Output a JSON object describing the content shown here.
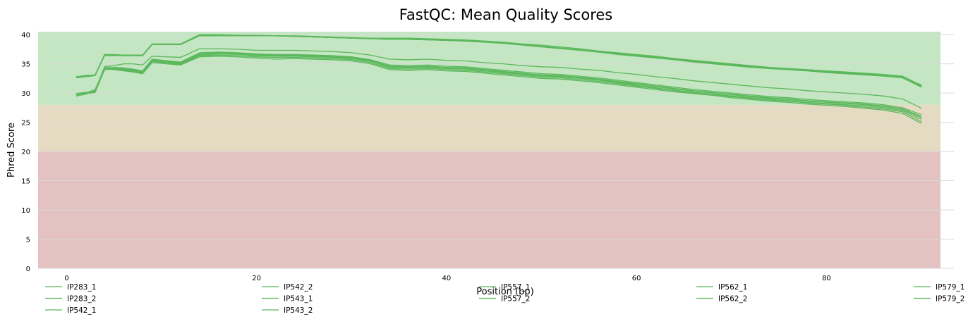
{
  "chart_data": {
    "type": "line",
    "title": "FastQC: Mean Quality Scores",
    "xlabel": "Position (bp)",
    "ylabel": "Phred Score",
    "xlim": [
      -3,
      92
    ],
    "ylim": [
      0,
      40.5
    ],
    "xticks": [
      0,
      20,
      40,
      60,
      80
    ],
    "yticks": [
      0,
      5,
      10,
      15,
      20,
      25,
      30,
      35,
      40
    ],
    "grid": "horizontal",
    "legend_placement": "bottom",
    "bands": [
      {
        "from": 0,
        "to": 20,
        "color": "#e4c2c1"
      },
      {
        "from": 20,
        "to": 28,
        "color": "#e5dbc3"
      },
      {
        "from": 28,
        "to": 40.5,
        "color": "#c4e6c3"
      }
    ],
    "line_color": "#5cb85c",
    "x": [
      1,
      2,
      3,
      4,
      5,
      6,
      7,
      8,
      9,
      12,
      14,
      16,
      18,
      20,
      22,
      24,
      26,
      28,
      30,
      32,
      34,
      36,
      38,
      40,
      42,
      44,
      46,
      48,
      50,
      52,
      54,
      56,
      58,
      60,
      62,
      64,
      66,
      68,
      70,
      72,
      74,
      76,
      78,
      80,
      82,
      84,
      86,
      88,
      90
    ],
    "series": [
      {
        "name": "IP283_1",
        "values": [
          32.7,
          32.9,
          33.0,
          36.5,
          36.5,
          36.4,
          36.4,
          36.4,
          38.3,
          38.3,
          39.9,
          39.9,
          39.9,
          39.8,
          39.8,
          39.7,
          39.6,
          39.5,
          39.4,
          39.3,
          39.2,
          39.2,
          39.1,
          39.0,
          38.9,
          38.7,
          38.5,
          38.3,
          38.0,
          37.7,
          37.4,
          37.1,
          36.8,
          36.5,
          36.2,
          35.9,
          35.5,
          35.2,
          34.9,
          34.6,
          34.3,
          34.1,
          33.9,
          33.7,
          33.5,
          33.3,
          33.1,
          32.8,
          31.1
        ]
      },
      {
        "name": "IP283_2",
        "values": [
          32.6,
          32.8,
          33.0,
          36.4,
          36.4,
          36.4,
          36.4,
          36.4,
          38.3,
          38.3,
          39.8,
          39.8,
          39.8,
          39.8,
          39.8,
          39.7,
          39.6,
          39.5,
          39.4,
          39.3,
          39.3,
          39.3,
          39.2,
          39.1,
          39.0,
          38.8,
          38.6,
          38.3,
          38.0,
          37.7,
          37.4,
          37.0,
          36.7,
          36.4,
          36.1,
          35.7,
          35.4,
          35.1,
          34.8,
          34.5,
          34.2,
          34.0,
          33.8,
          33.6,
          33.4,
          33.2,
          33.0,
          32.6,
          31.4
        ]
      },
      {
        "name": "IP542_1",
        "values": [
          29.8,
          29.9,
          30.1,
          34.0,
          34.1,
          34.0,
          33.8,
          33.5,
          35.5,
          35.0,
          36.5,
          36.7,
          36.6,
          36.4,
          36.3,
          36.3,
          36.2,
          36.1,
          35.9,
          35.4,
          34.4,
          34.3,
          34.4,
          34.2,
          34.1,
          33.8,
          33.5,
          33.2,
          32.9,
          32.8,
          32.5,
          32.2,
          31.8,
          31.3,
          30.9,
          30.5,
          30.1,
          29.8,
          29.5,
          29.2,
          28.9,
          28.7,
          28.4,
          28.2,
          28.0,
          27.8,
          27.5,
          27.0,
          25.5
        ]
      },
      {
        "name": "IP542_2",
        "values": [
          29.9,
          30.1,
          30.3,
          34.3,
          34.4,
          34.3,
          34.1,
          33.8,
          35.8,
          35.3,
          36.9,
          37.0,
          36.9,
          36.7,
          36.6,
          36.6,
          36.5,
          36.4,
          36.2,
          35.7,
          34.8,
          34.7,
          34.8,
          34.6,
          34.5,
          34.2,
          33.9,
          33.6,
          33.3,
          33.2,
          32.9,
          32.6,
          32.2,
          31.8,
          31.4,
          31.0,
          30.6,
          30.3,
          30.0,
          29.7,
          29.4,
          29.2,
          28.9,
          28.7,
          28.5,
          28.3,
          28.0,
          27.5,
          26.3
        ]
      },
      {
        "name": "IP543_1",
        "values": [
          29.5,
          29.8,
          30.4,
          34.5,
          34.7,
          35.0,
          35.0,
          34.8,
          36.3,
          36.1,
          37.6,
          37.6,
          37.5,
          37.3,
          37.3,
          37.3,
          37.2,
          37.1,
          36.9,
          36.5,
          35.8,
          35.7,
          35.8,
          35.6,
          35.5,
          35.2,
          35.0,
          34.7,
          34.5,
          34.4,
          34.1,
          33.9,
          33.5,
          33.2,
          32.8,
          32.5,
          32.1,
          31.8,
          31.5,
          31.2,
          30.9,
          30.7,
          30.4,
          30.2,
          30.0,
          29.8,
          29.5,
          29.0,
          27.4
        ]
      },
      {
        "name": "IP543_2",
        "values": [
          29.7,
          30.0,
          30.6,
          34.2,
          34.0,
          33.8,
          33.6,
          33.3,
          35.2,
          34.8,
          36.2,
          36.3,
          36.2,
          36.0,
          35.8,
          35.9,
          35.8,
          35.7,
          35.5,
          35.0,
          34.0,
          33.9,
          34.0,
          33.8,
          33.7,
          33.4,
          33.1,
          32.8,
          32.5,
          32.4,
          32.1,
          31.8,
          31.4,
          31.0,
          30.6,
          30.2,
          29.9,
          29.6,
          29.2,
          28.9,
          28.6,
          28.4,
          28.1,
          27.9,
          27.7,
          27.4,
          27.1,
          26.5,
          24.8
        ]
      },
      {
        "name": "IP557_1",
        "values": [
          32.8,
          33.0,
          33.1,
          36.6,
          36.6,
          36.5,
          36.5,
          36.5,
          38.4,
          38.4,
          40.0,
          40.0,
          39.9,
          39.9,
          39.8,
          39.8,
          39.7,
          39.6,
          39.5,
          39.4,
          39.4,
          39.4,
          39.3,
          39.2,
          39.1,
          38.9,
          38.7,
          38.4,
          38.2,
          37.9,
          37.6,
          37.2,
          36.9,
          36.6,
          36.3,
          35.9,
          35.6,
          35.3,
          35.0,
          34.7,
          34.4,
          34.2,
          34.0,
          33.8,
          33.6,
          33.4,
          33.2,
          32.9,
          31.3
        ]
      },
      {
        "name": "IP557_2",
        "values": [
          29.9,
          30.1,
          30.2,
          34.1,
          34.2,
          34.1,
          33.9,
          33.6,
          35.6,
          35.1,
          36.6,
          36.8,
          36.7,
          36.5,
          36.4,
          36.4,
          36.3,
          36.2,
          36.0,
          35.5,
          34.5,
          34.4,
          34.5,
          34.3,
          34.2,
          33.9,
          33.6,
          33.3,
          33.0,
          32.9,
          32.6,
          32.3,
          31.9,
          31.5,
          31.1,
          30.7,
          30.3,
          30.0,
          29.7,
          29.4,
          29.1,
          28.9,
          28.6,
          28.4,
          28.2,
          28.0,
          27.7,
          27.2,
          25.8
        ]
      },
      {
        "name": "IP562_1",
        "values": [
          32.7,
          32.9,
          33.0,
          36.5,
          36.5,
          36.4,
          36.4,
          36.4,
          38.3,
          38.3,
          39.9,
          39.9,
          39.9,
          39.8,
          39.8,
          39.7,
          39.6,
          39.5,
          39.4,
          39.3,
          39.2,
          39.2,
          39.1,
          39.0,
          38.9,
          38.7,
          38.5,
          38.2,
          37.9,
          37.6,
          37.3,
          37.0,
          36.6,
          36.3,
          36.0,
          35.7,
          35.3,
          35.0,
          34.7,
          34.4,
          34.2,
          34.0,
          33.8,
          33.5,
          33.3,
          33.1,
          32.9,
          32.6,
          31.0
        ]
      },
      {
        "name": "IP562_2",
        "values": [
          29.8,
          30.0,
          30.2,
          34.2,
          34.3,
          34.2,
          34.0,
          33.7,
          35.7,
          35.2,
          36.7,
          36.9,
          36.8,
          36.6,
          36.5,
          36.5,
          36.4,
          36.3,
          36.1,
          35.6,
          34.6,
          34.5,
          34.6,
          34.4,
          34.3,
          34.0,
          33.7,
          33.4,
          33.1,
          33.0,
          32.7,
          32.4,
          32.0,
          31.6,
          31.2,
          30.8,
          30.4,
          30.1,
          29.8,
          29.5,
          29.2,
          29.0,
          28.7,
          28.5,
          28.3,
          28.1,
          27.8,
          27.3,
          26.0
        ]
      },
      {
        "name": "IP579_1",
        "values": [
          32.6,
          32.8,
          33.0,
          36.5,
          36.5,
          36.5,
          36.5,
          36.5,
          38.3,
          38.3,
          39.9,
          39.9,
          39.8,
          39.8,
          39.8,
          39.7,
          39.6,
          39.5,
          39.4,
          39.3,
          39.3,
          39.3,
          39.2,
          39.1,
          39.0,
          38.8,
          38.6,
          38.3,
          38.0,
          37.7,
          37.4,
          37.1,
          36.7,
          36.4,
          36.1,
          35.8,
          35.4,
          35.1,
          34.8,
          34.5,
          34.3,
          34.1,
          33.9,
          33.6,
          33.4,
          33.2,
          33.0,
          32.7,
          31.2
        ]
      },
      {
        "name": "IP579_2",
        "values": [
          29.8,
          30.0,
          30.3,
          34.2,
          34.1,
          33.9,
          33.7,
          33.4,
          35.4,
          34.9,
          36.4,
          36.5,
          36.4,
          36.2,
          36.1,
          36.1,
          36.0,
          35.9,
          35.7,
          35.2,
          34.2,
          34.1,
          34.2,
          34.0,
          33.9,
          33.6,
          33.3,
          33.0,
          32.7,
          32.6,
          32.3,
          32.0,
          31.6,
          31.2,
          30.8,
          30.4,
          30.0,
          29.7,
          29.4,
          29.1,
          28.8,
          28.6,
          28.3,
          28.1,
          27.9,
          27.6,
          27.3,
          26.8,
          25.1
        ]
      }
    ],
    "legend_columns": [
      [
        "IP283_1",
        "IP283_2",
        "IP542_1"
      ],
      [
        "IP542_2",
        "IP543_1",
        "IP543_2"
      ],
      [
        "IP557_1",
        "IP557_2"
      ],
      [
        "IP562_1",
        "IP562_2"
      ],
      [
        "IP579_1",
        "IP579_2"
      ]
    ]
  }
}
